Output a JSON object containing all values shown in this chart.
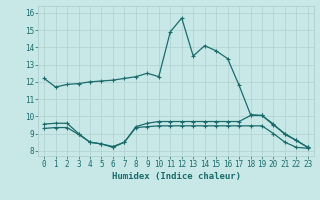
{
  "xlabel": "Humidex (Indice chaleur)",
  "ylabel": "",
  "background_color": "#c8e8e8",
  "line_color": "#1a6b6b",
  "grid_color": "#b0d0d0",
  "xlim": [
    -0.5,
    23.5
  ],
  "ylim": [
    7.7,
    16.4
  ],
  "yticks": [
    8,
    9,
    10,
    11,
    12,
    13,
    14,
    15,
    16
  ],
  "xticks": [
    0,
    1,
    2,
    3,
    4,
    5,
    6,
    7,
    8,
    9,
    10,
    11,
    12,
    13,
    14,
    15,
    16,
    17,
    18,
    19,
    20,
    21,
    22,
    23
  ],
  "line1_x": [
    0,
    1,
    2,
    3,
    4,
    5,
    6,
    7,
    8,
    9,
    10,
    11,
    12,
    13,
    14,
    15,
    16,
    17,
    18,
    19,
    20,
    21,
    22,
    23
  ],
  "line1_y": [
    12.2,
    11.7,
    11.85,
    11.9,
    12.0,
    12.05,
    12.1,
    12.2,
    12.3,
    12.5,
    12.3,
    14.9,
    15.7,
    13.5,
    14.1,
    13.8,
    13.35,
    11.8,
    10.1,
    10.05,
    9.5,
    9.0,
    8.6,
    8.2
  ],
  "line2_x": [
    0,
    1,
    2,
    3,
    4,
    5,
    6,
    7,
    8,
    9,
    10,
    11,
    12,
    13,
    14,
    15,
    16,
    17,
    18,
    19,
    20,
    21,
    22,
    23
  ],
  "line2_y": [
    9.55,
    9.6,
    9.6,
    9.0,
    8.5,
    8.4,
    8.2,
    8.5,
    9.4,
    9.6,
    9.7,
    9.7,
    9.7,
    9.7,
    9.7,
    9.7,
    9.7,
    9.7,
    10.05,
    10.05,
    9.55,
    8.95,
    8.6,
    8.2
  ],
  "line3_x": [
    0,
    1,
    2,
    3,
    4,
    5,
    6,
    7,
    8,
    9,
    10,
    11,
    12,
    13,
    14,
    15,
    16,
    17,
    18,
    19,
    20,
    21,
    22,
    23
  ],
  "line3_y": [
    9.3,
    9.35,
    9.35,
    8.95,
    8.5,
    8.4,
    8.25,
    8.5,
    9.35,
    9.4,
    9.45,
    9.45,
    9.45,
    9.45,
    9.45,
    9.45,
    9.45,
    9.45,
    9.45,
    9.45,
    9.0,
    8.5,
    8.2,
    8.15
  ],
  "marker": "+",
  "markersize": 3.5,
  "linewidth": 0.9
}
